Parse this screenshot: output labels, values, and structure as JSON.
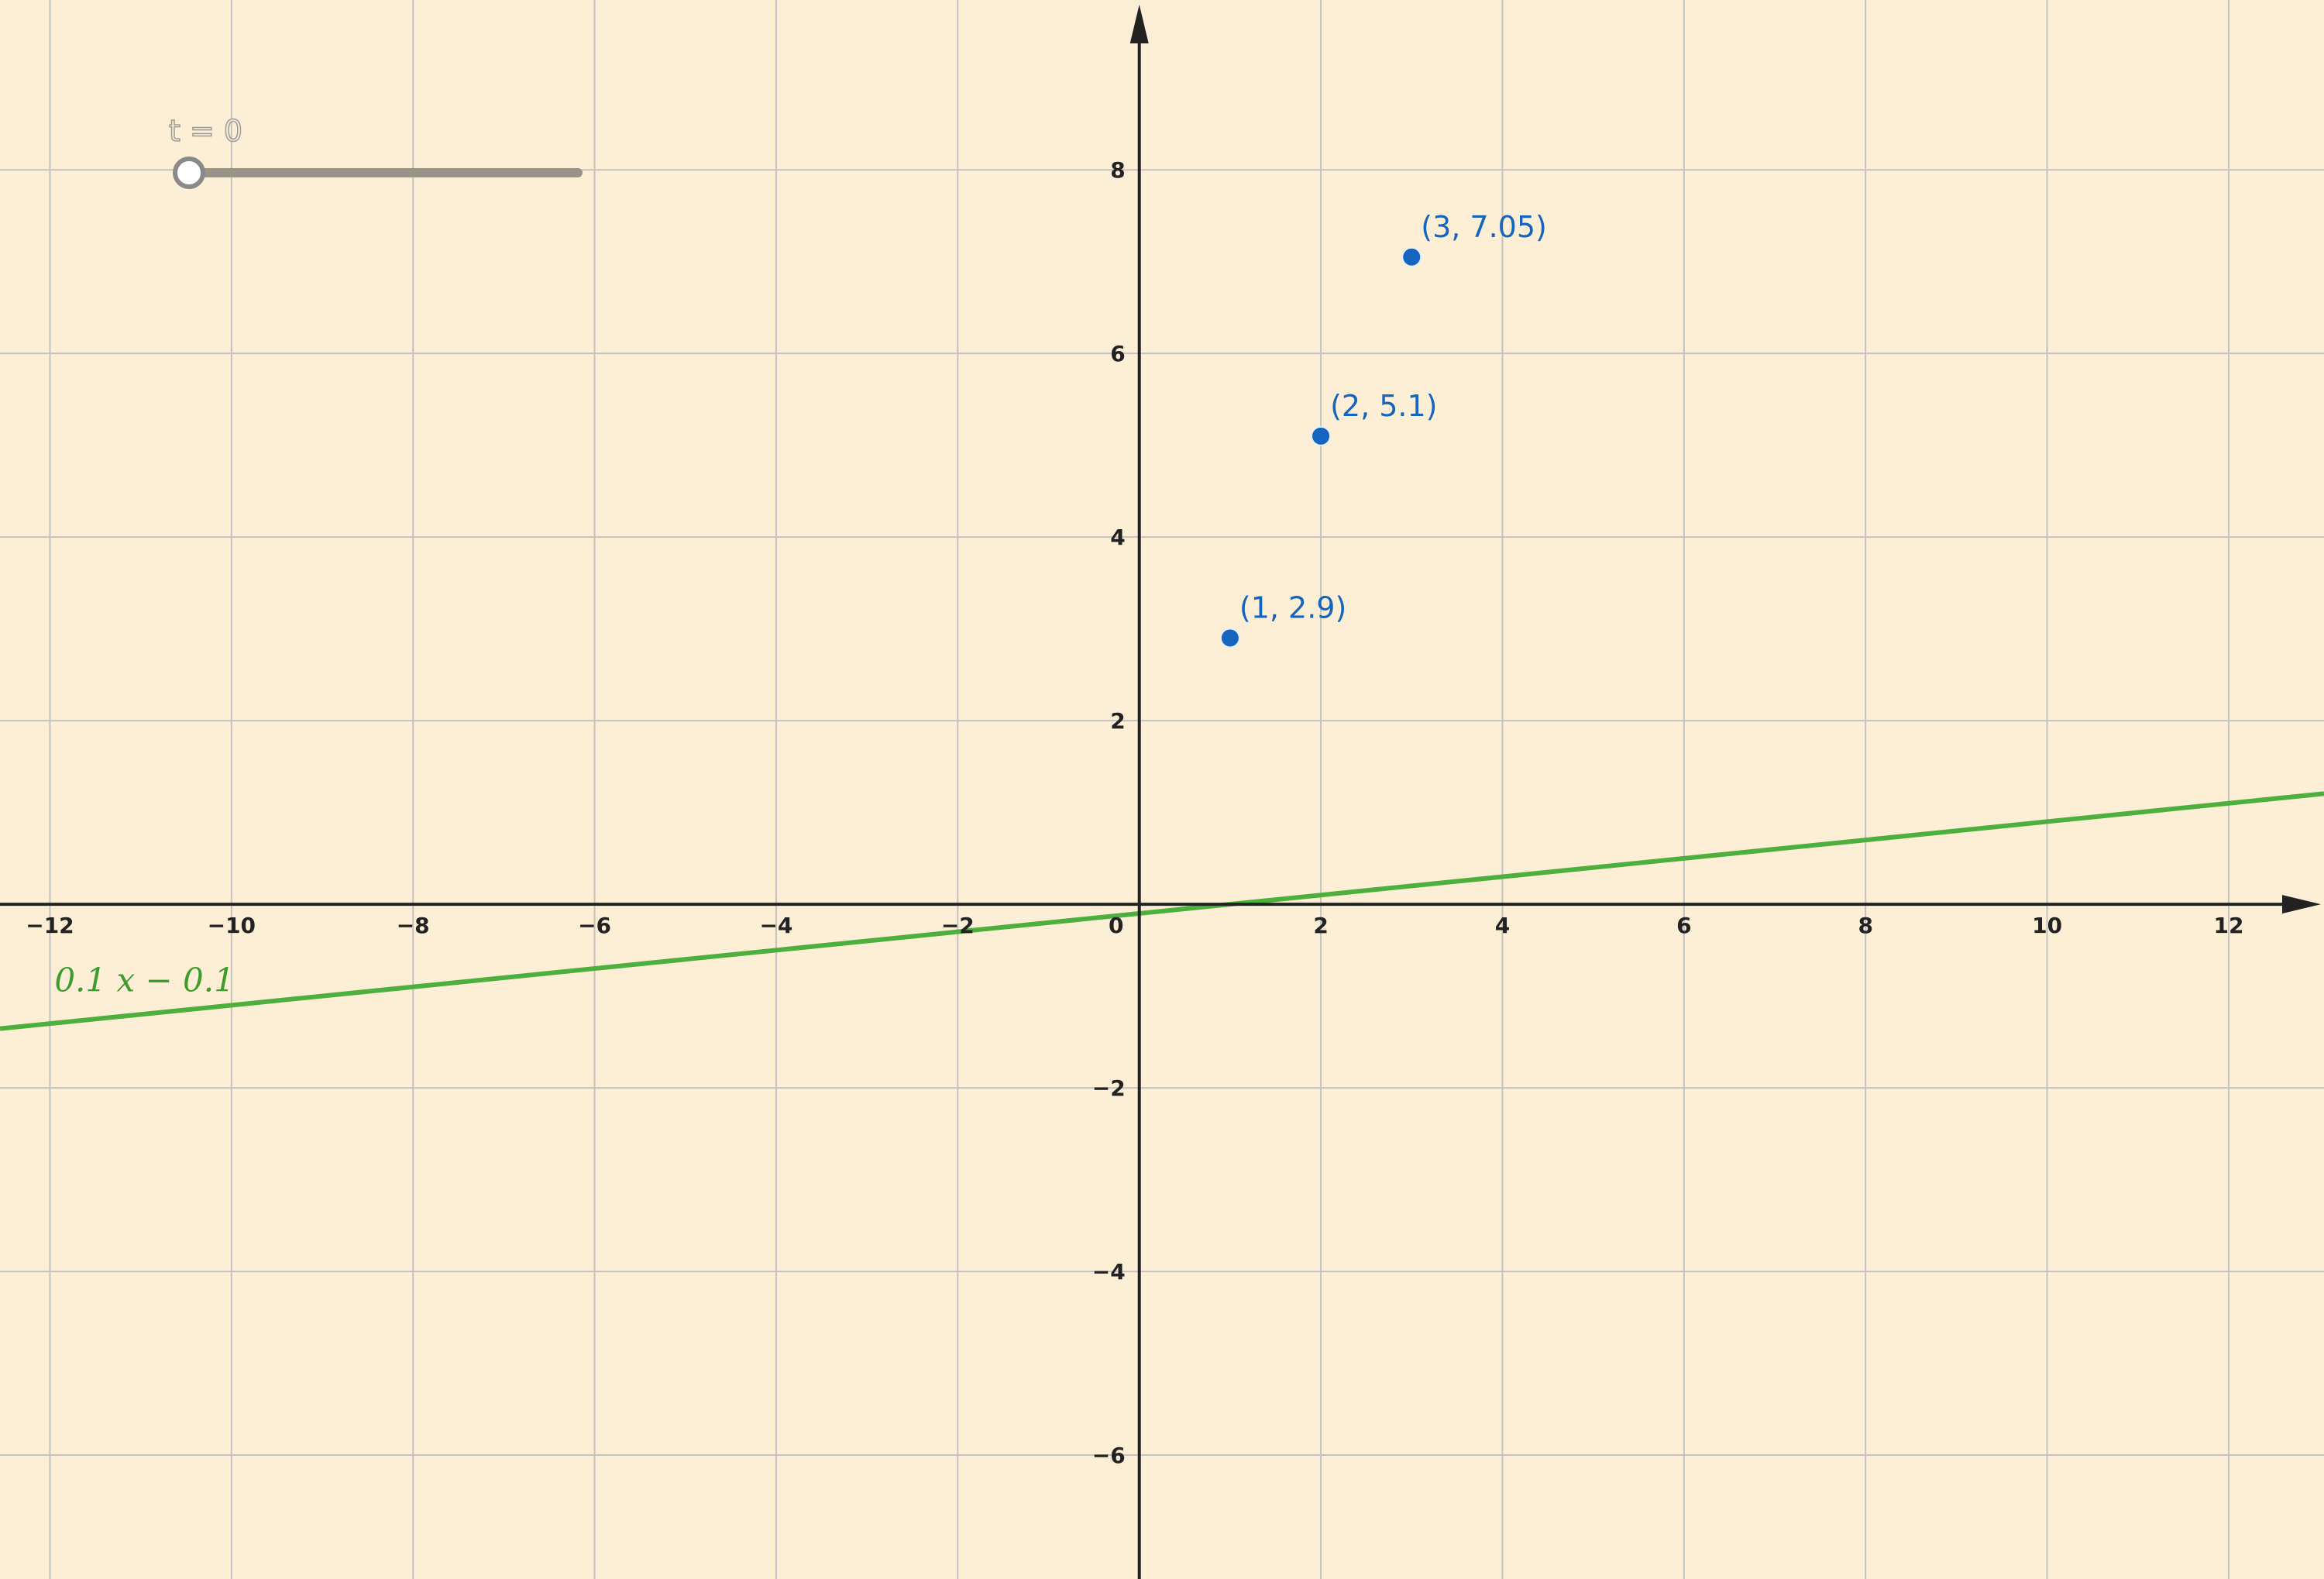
{
  "slider": {
    "label": "t = 0",
    "value": 0,
    "fraction": 0
  },
  "chart_data": {
    "type": "line",
    "title": "",
    "xlabel": "",
    "ylabel": "",
    "xlim": [
      -12.55,
      13.05
    ],
    "ylim": [
      -7.35,
      9.85
    ],
    "grid": true,
    "x_ticks": [
      {
        "value": -12,
        "label": "−12"
      },
      {
        "value": -10,
        "label": "−10"
      },
      {
        "value": -8,
        "label": "−8"
      },
      {
        "value": -6,
        "label": "−6"
      },
      {
        "value": -4,
        "label": "−4"
      },
      {
        "value": -2,
        "label": "−2"
      },
      {
        "value": 0,
        "label": "0"
      },
      {
        "value": 2,
        "label": "2"
      },
      {
        "value": 4,
        "label": "4"
      },
      {
        "value": 6,
        "label": "6"
      },
      {
        "value": 8,
        "label": "8"
      },
      {
        "value": 10,
        "label": "10"
      },
      {
        "value": 12,
        "label": "12"
      }
    ],
    "y_ticks": [
      {
        "value": -6,
        "label": "−6"
      },
      {
        "value": -4,
        "label": "−4"
      },
      {
        "value": -2,
        "label": "−2"
      },
      {
        "value": 2,
        "label": "2"
      },
      {
        "value": 4,
        "label": "4"
      },
      {
        "value": 6,
        "label": "6"
      },
      {
        "value": 8,
        "label": "8"
      }
    ],
    "points": [
      {
        "x": 1,
        "y": 2.9,
        "label": "(1, 2.9)"
      },
      {
        "x": 2,
        "y": 5.1,
        "label": "(2, 5.1)"
      },
      {
        "x": 3,
        "y": 7.05,
        "label": "(3, 7.05)"
      }
    ],
    "series": [
      {
        "name": "0.1 x − 0.1",
        "slope": 0.1,
        "intercept": -0.1,
        "color": "#4caf3e"
      }
    ],
    "colors": {
      "background": "#fdefd5",
      "points": "#1565c0",
      "line": "#4caf3e",
      "grid": "#c2c2c2",
      "axes": "#222222"
    }
  }
}
